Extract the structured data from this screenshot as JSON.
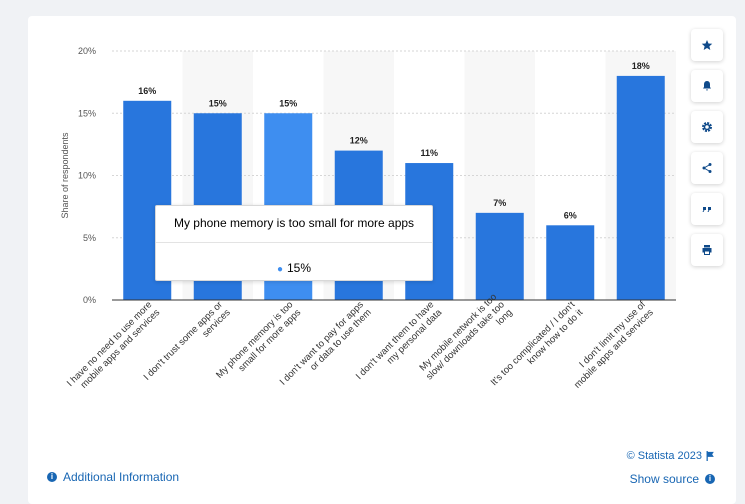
{
  "chart_data": {
    "type": "bar",
    "categories": [
      [
        "I have no need to use more",
        "mobile apps and services"
      ],
      [
        "I don't trust some apps or",
        "services"
      ],
      [
        "My phone memory is too",
        "small for more apps"
      ],
      [
        "I don't want to pay for apps",
        "or data to use them"
      ],
      [
        "I don't want them to have",
        "my personal data"
      ],
      [
        "My mobile network is too",
        "slow/ downloads take too",
        "long"
      ],
      [
        "It's too complicated / I don't",
        "know how to do it"
      ],
      [
        "I don't limit my use of",
        "mobile apps and services"
      ]
    ],
    "values": [
      16,
      15,
      15,
      12,
      11,
      7,
      6,
      18
    ],
    "data_labels": [
      "16%",
      "15%",
      "15%",
      "12%",
      "11%",
      "7%",
      "6%",
      "18%"
    ],
    "highlighted_index": 2,
    "ylabel": "Share of respondents",
    "ylim": [
      0,
      20
    ],
    "yticks": [
      0,
      5,
      10,
      15,
      20
    ],
    "ytick_labels": [
      "0%",
      "5%",
      "10%",
      "15%",
      "20%"
    ],
    "grid": true,
    "colors": {
      "bar": "#2876dd",
      "bar_highlight": "#3e8ef0",
      "band": "#f7f7f7",
      "grid": "#d6d6d6",
      "axis": "#333333"
    }
  },
  "tooltip": {
    "title": "My phone memory is too small for more apps",
    "value": "15%"
  },
  "sidebar": {
    "buttons": [
      "star-icon",
      "bell-icon",
      "gear-icon",
      "share-icon",
      "quote-icon",
      "print-icon"
    ]
  },
  "footer": {
    "additional_info": "Additional Information",
    "credit": "© Statista 2023",
    "show_source": "Show source"
  }
}
